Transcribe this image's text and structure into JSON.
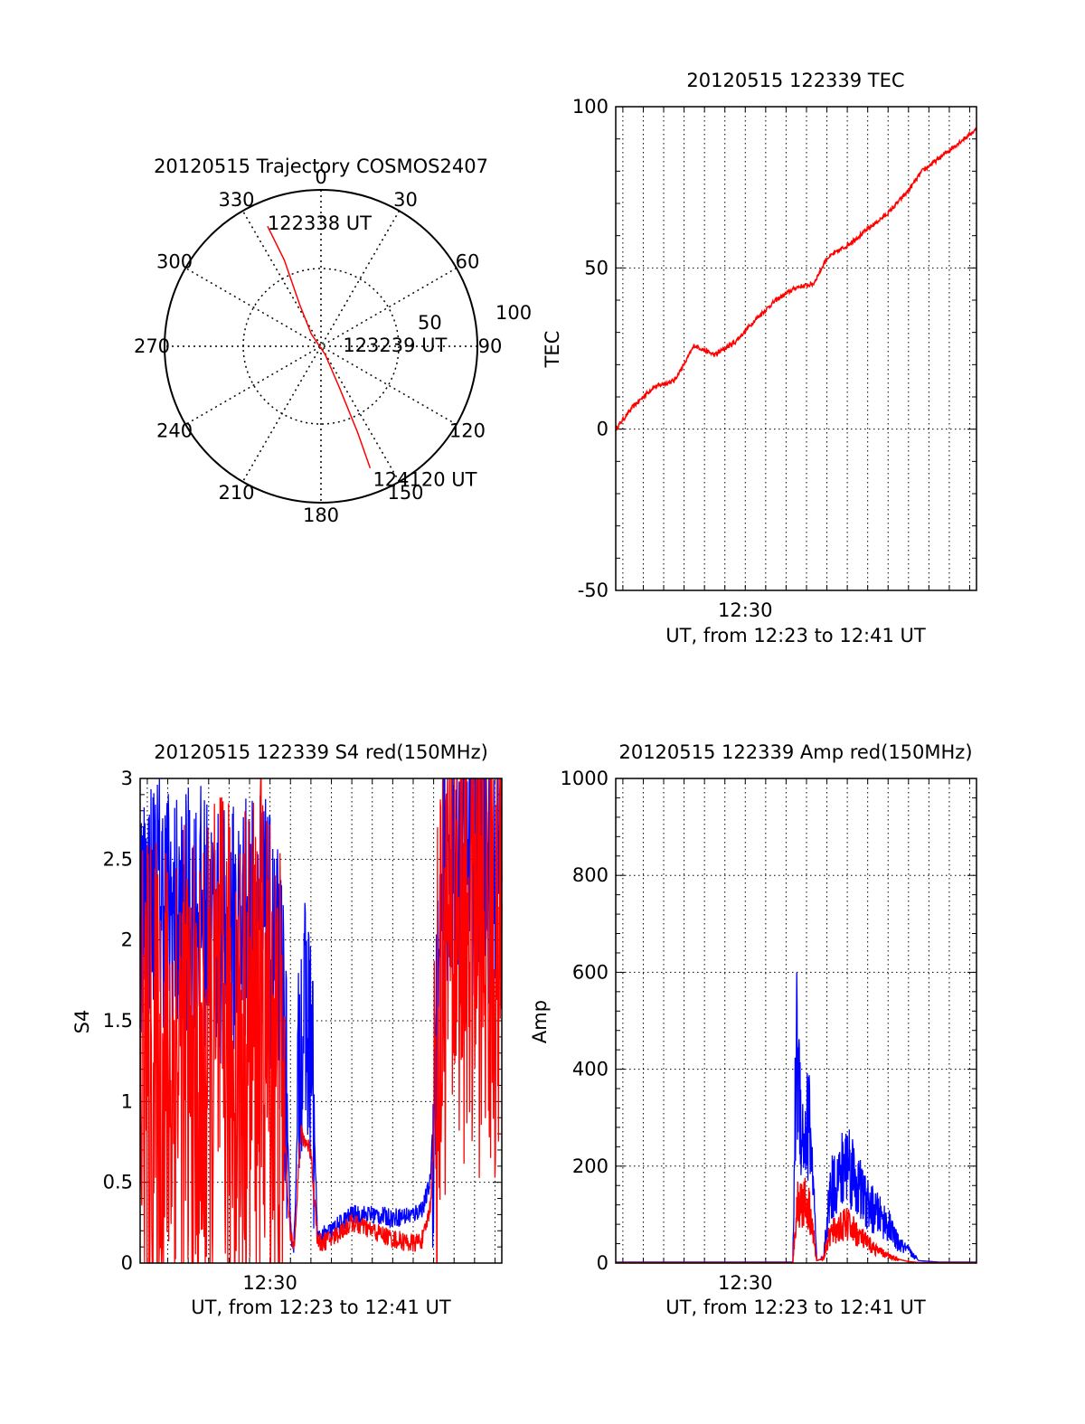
{
  "chart_data": [
    {
      "id": "trajectory",
      "type": "polar",
      "title": "20120515 Trajectory COSMOS2407",
      "angle_direction": "clockwise",
      "angle_zero": "top",
      "angle_labels": [
        "0",
        "30",
        "60",
        "90",
        "120",
        "150",
        "180",
        "210",
        "240",
        "270",
        "300",
        "330"
      ],
      "radial_labels": [
        "50",
        "100"
      ],
      "rlim": [
        0,
        100
      ],
      "grid": true,
      "series": [
        {
          "color": "#ff0000",
          "points": [
            {
              "az": 336,
              "r": 84
            },
            {
              "az": 337,
              "r": 60
            },
            {
              "az": 333,
              "r": 30
            },
            {
              "az": 322,
              "r": 10
            },
            {
              "az": 153,
              "r": 6
            },
            {
              "az": 156,
              "r": 30
            },
            {
              "az": 157,
              "r": 60
            },
            {
              "az": 158,
              "r": 84
            }
          ]
        }
      ],
      "annotations": [
        {
          "text": "122338 UT",
          "az": 336,
          "r": 84
        },
        {
          "text": "123239 UT",
          "az": 95,
          "r": 6
        },
        {
          "text": "124120 UT",
          "az": 158,
          "r": 84
        }
      ]
    },
    {
      "id": "tec",
      "type": "line",
      "title": "20120515 122339 TEC",
      "xlabel": "UT, from 12:23 to 12:41 UT",
      "ylabel": "TEC",
      "xlim": [
        "12:23:39",
        "12:41:20"
      ],
      "ylim": [
        -50,
        100
      ],
      "yticks": [
        "-50",
        "0",
        "50",
        "100"
      ],
      "xticks": [
        {
          "label": "12:30",
          "value": "12:30"
        }
      ],
      "grid": true,
      "series": [
        {
          "color": "#ff0000",
          "x": [
            "12:23:39",
            "12:24:30",
            "12:25:30",
            "12:26:30",
            "12:27:00",
            "12:27:30",
            "12:28:30",
            "12:29:30",
            "12:30:30",
            "12:31:30",
            "12:32:30",
            "12:33:20",
            "12:34:00",
            "12:35:00",
            "12:36:00",
            "12:37:00",
            "12:38:00",
            "12:38:40",
            "12:39:30",
            "12:40:30",
            "12:41:20"
          ],
          "y": [
            0,
            7,
            13,
            15,
            20,
            26,
            23,
            27,
            34,
            40,
            44,
            45,
            53,
            57,
            62,
            67,
            74,
            80,
            84,
            89,
            93
          ]
        }
      ]
    },
    {
      "id": "s4",
      "type": "line",
      "title": "20120515 122339 S4 red(150MHz)",
      "xlabel": "UT, from 12:23 to 12:41 UT",
      "ylabel": "S4",
      "xlim": [
        "12:23:39",
        "12:41:20"
      ],
      "ylim": [
        0,
        3
      ],
      "yticks": [
        "0",
        "0.5",
        "1",
        "1.5",
        "2",
        "2.5",
        "3"
      ],
      "xticks": [
        {
          "label": "12:30",
          "value": "12:30"
        }
      ],
      "grid": true,
      "series": [
        {
          "color": "#0000ff",
          "x": [
            "12:23:39",
            "12:24:30",
            "12:25:30",
            "12:26:30",
            "12:27:30",
            "12:28:30",
            "12:29:30",
            "12:30:10",
            "12:30:40",
            "12:31:00",
            "12:31:10",
            "12:31:30",
            "12:32:00",
            "12:32:20",
            "12:33:00",
            "12:34:00",
            "12:35:00",
            "12:36:00",
            "12:37:00",
            "12:37:30",
            "12:37:50",
            "12:38:30",
            "12:39:30",
            "12:40:30",
            "12:41:20"
          ],
          "y": [
            2.2,
            2.3,
            2.1,
            2.2,
            2.0,
            2.1,
            2.2,
            1.9,
            1.6,
            0.2,
            0.1,
            1.5,
            1.4,
            0.15,
            0.2,
            0.3,
            0.3,
            0.28,
            0.3,
            0.35,
            0.5,
            2.4,
            2.5,
            2.4,
            2.4
          ]
        },
        {
          "color": "#ff0000",
          "x": [
            "12:23:39",
            "12:24:30",
            "12:25:30",
            "12:26:30",
            "12:27:30",
            "12:28:30",
            "12:29:30",
            "12:30:10",
            "12:30:40",
            "12:31:00",
            "12:31:10",
            "12:31:30",
            "12:32:00",
            "12:32:20",
            "12:33:00",
            "12:34:00",
            "12:35:00",
            "12:36:00",
            "12:37:00",
            "12:37:30",
            "12:37:50",
            "12:38:30",
            "12:39:30",
            "12:40:30",
            "12:41:20"
          ],
          "y": [
            1.2,
            1.0,
            1.3,
            0.9,
            1.4,
            1.2,
            1.5,
            1.3,
            0.9,
            0.15,
            0.1,
            0.8,
            0.7,
            0.12,
            0.15,
            0.25,
            0.2,
            0.15,
            0.12,
            0.15,
            0.35,
            2.0,
            2.2,
            2.1,
            2.0
          ]
        }
      ]
    },
    {
      "id": "amp",
      "type": "line",
      "title": "20120515 122339 Amp red(150MHz)",
      "xlabel": "UT, from 12:23 to 12:41 UT",
      "ylabel": "Amp",
      "xlim": [
        "12:23:39",
        "12:41:20"
      ],
      "ylim": [
        0,
        1000
      ],
      "yticks": [
        "0",
        "200",
        "400",
        "600",
        "800",
        "1000"
      ],
      "xticks": [
        {
          "label": "12:30",
          "value": "12:30"
        }
      ],
      "grid": true,
      "series": [
        {
          "color": "#0000ff",
          "x": [
            "12:23:39",
            "12:27:00",
            "12:31:00",
            "12:32:20",
            "12:32:30",
            "12:32:50",
            "12:33:10",
            "12:33:30",
            "12:33:50",
            "12:34:00",
            "12:34:10",
            "12:34:40",
            "12:35:00",
            "12:35:30",
            "12:36:00",
            "12:36:30",
            "12:37:00",
            "12:37:30",
            "12:38:00",
            "12:38:30",
            "12:39:30",
            "12:41:20"
          ],
          "y": [
            2,
            2,
            2,
            2,
            450,
            250,
            300,
            5,
            10,
            80,
            150,
            180,
            220,
            160,
            120,
            100,
            80,
            40,
            25,
            5,
            2,
            2
          ]
        },
        {
          "color": "#ff0000",
          "x": [
            "12:23:39",
            "12:27:00",
            "12:31:00",
            "12:32:20",
            "12:32:30",
            "12:32:50",
            "12:33:10",
            "12:33:30",
            "12:33:50",
            "12:34:00",
            "12:34:10",
            "12:34:40",
            "12:35:00",
            "12:35:30",
            "12:36:00",
            "12:36:30",
            "12:37:00",
            "12:37:30",
            "12:38:00",
            "12:38:30",
            "12:39:30",
            "12:41:20"
          ],
          "y": [
            1,
            1,
            1,
            1,
            120,
            130,
            110,
            5,
            10,
            40,
            60,
            75,
            80,
            60,
            40,
            25,
            15,
            8,
            3,
            1,
            1,
            1
          ]
        }
      ]
    }
  ]
}
